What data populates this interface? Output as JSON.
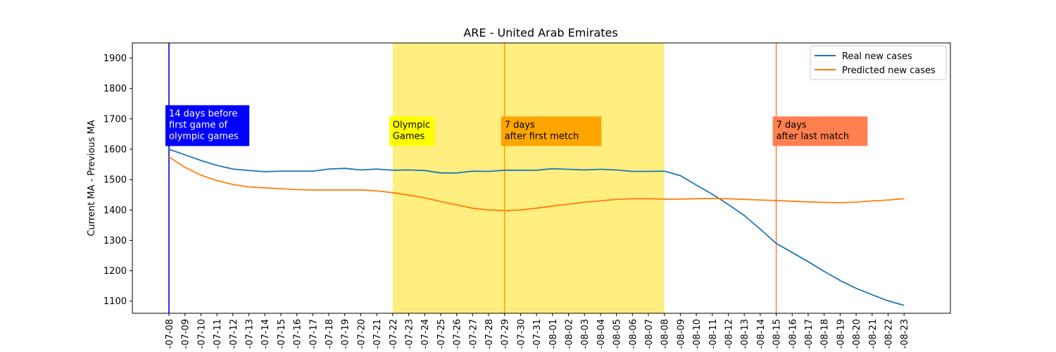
{
  "chart_data": {
    "type": "line",
    "title": "ARE - United Arab Emirates",
    "xlabel": "",
    "ylabel": "Current MA - Previous MA",
    "ylim": [
      1060,
      1950
    ],
    "yticks": [
      1100,
      1200,
      1300,
      1400,
      1500,
      1600,
      1700,
      1800,
      1900
    ],
    "grid": false,
    "legend_position": "top-right",
    "x": [
      "2021-07-08",
      "2021-07-09",
      "2021-07-10",
      "2021-07-11",
      "2021-07-12",
      "2021-07-13",
      "2021-07-14",
      "2021-07-15",
      "2021-07-16",
      "2021-07-17",
      "2021-07-18",
      "2021-07-19",
      "2021-07-20",
      "2021-07-21",
      "2021-07-22",
      "2021-07-23",
      "2021-07-24",
      "2021-07-25",
      "2021-07-26",
      "2021-07-27",
      "2021-07-28",
      "2021-07-29",
      "2021-07-30",
      "2021-07-31",
      "2021-08-01",
      "2021-08-02",
      "2021-08-03",
      "2021-08-04",
      "2021-08-05",
      "2021-08-06",
      "2021-08-07",
      "2021-08-08",
      "2021-08-09",
      "2021-08-10",
      "2021-08-11",
      "2021-08-12",
      "2021-08-13",
      "2021-08-14",
      "2021-08-15",
      "2021-08-16",
      "2021-08-17",
      "2021-08-18",
      "2021-08-19",
      "2021-08-20",
      "2021-08-21",
      "2021-08-22",
      "2021-08-23"
    ],
    "x_tick_labels": [
      "-07-08",
      "-07-09",
      "-07-10",
      "-07-11",
      "-07-12",
      "-07-13",
      "-07-14",
      "-07-15",
      "-07-16",
      "-07-17",
      "-07-18",
      "-07-19",
      "-07-20",
      "-07-21",
      "-07-22",
      "-07-23",
      "-07-24",
      "-07-25",
      "-07-26",
      "-07-27",
      "-07-28",
      "-07-29",
      "-07-30",
      "-07-31",
      "-08-01",
      "-08-02",
      "-08-03",
      "-08-04",
      "-08-05",
      "-08-06",
      "-08-07",
      "-08-08",
      "-08-09",
      "-08-10",
      "-08-11",
      "-08-12",
      "-08-13",
      "-08-14",
      "-08-15",
      "-08-16",
      "-08-17",
      "-08-18",
      "-08-19",
      "-08-20",
      "-08-21",
      "-08-22",
      "-08-23"
    ],
    "series": [
      {
        "name": "Real new cases",
        "color": "#1f77b4",
        "values": [
          1600,
          1582,
          1563,
          1547,
          1535,
          1530,
          1526,
          1528,
          1528,
          1528,
          1535,
          1537,
          1532,
          1535,
          1531,
          1532,
          1530,
          1522,
          1522,
          1528,
          1527,
          1531,
          1531,
          1531,
          1536,
          1534,
          1532,
          1534,
          1532,
          1527,
          1527,
          1528,
          1513,
          1482,
          1452,
          1418,
          1382,
          1337,
          1290,
          1260,
          1230,
          1198,
          1168,
          1142,
          1121,
          1101,
          1086
        ]
      },
      {
        "name": "Predicted new cases",
        "color": "#ff7f0e",
        "values": [
          1575,
          1540,
          1515,
          1497,
          1484,
          1476,
          1473,
          1470,
          1467,
          1466,
          1466,
          1466,
          1466,
          1463,
          1457,
          1449,
          1440,
          1428,
          1417,
          1406,
          1400,
          1398,
          1400,
          1406,
          1413,
          1419,
          1426,
          1430,
          1435,
          1437,
          1437,
          1436,
          1436,
          1437,
          1438,
          1437,
          1435,
          1433,
          1431,
          1429,
          1427,
          1425,
          1424,
          1426,
          1430,
          1433,
          1437
        ]
      }
    ],
    "shaded_region": {
      "from": "2021-07-22",
      "to": "2021-08-08",
      "color": "#ffee80"
    },
    "vertical_lines": [
      {
        "x": "2021-07-08",
        "color": "#0000cc"
      },
      {
        "x": "2021-07-29",
        "color": "#ffa500"
      },
      {
        "x": "2021-08-15",
        "color": "#ff7f50"
      }
    ],
    "annotations": [
      {
        "lines": [
          "14 days before",
          "first game of",
          "olympic games"
        ],
        "x": "2021-07-08",
        "y_top": 1745,
        "bg": "#0000ff",
        "fg": "#ffffff"
      },
      {
        "lines": [
          "Olympic",
          "Games"
        ],
        "x": "2021-07-22",
        "y_top": 1708,
        "bg": "#ffff00",
        "fg": "#000000"
      },
      {
        "lines": [
          "7 days",
          "after first metch"
        ],
        "x": "2021-07-29",
        "y_top": 1708,
        "bg": "#ffa500",
        "fg": "#000000"
      },
      {
        "lines": [
          "7 days",
          "after last match"
        ],
        "x": "2021-08-15",
        "y_top": 1708,
        "bg": "#ff7f50",
        "fg": "#000000"
      }
    ]
  }
}
